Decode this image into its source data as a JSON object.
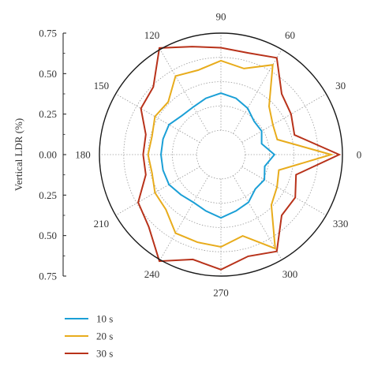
{
  "chart_data": {
    "type": "polar",
    "ylabel": "Vertical LDR (%)",
    "radial_axis": {
      "ticks": [
        "0.75",
        "0.50",
        "0.25",
        "0.00",
        "0.25",
        "0.50",
        "0.75"
      ],
      "rmax": 0.75
    },
    "angular_axis": {
      "ticks": [
        "0",
        "30",
        "60",
        "90",
        "120",
        "150",
        "180",
        "210",
        "240",
        "270",
        "300",
        "330"
      ],
      "unit": "degrees"
    },
    "grid": true,
    "legend_position": "bottom-left",
    "theta": [
      0,
      15,
      30,
      45,
      60,
      75,
      90,
      105,
      120,
      135,
      150,
      165,
      180,
      195,
      210,
      225,
      240,
      255,
      270,
      285,
      300,
      315,
      330,
      345
    ],
    "series": [
      {
        "name": "10 s",
        "color": "#1a9fd6",
        "r": [
          0.33,
          0.26,
          0.29,
          0.29,
          0.33,
          0.36,
          0.38,
          0.36,
          0.34,
          0.34,
          0.37,
          0.37,
          0.37,
          0.37,
          0.37,
          0.35,
          0.34,
          0.36,
          0.39,
          0.36,
          0.34,
          0.3,
          0.31,
          0.28
        ]
      },
      {
        "name": "20 s",
        "color": "#e8ac1c",
        "r": [
          0.68,
          0.36,
          0.37,
          0.42,
          0.64,
          0.55,
          0.58,
          0.54,
          0.56,
          0.46,
          0.47,
          0.44,
          0.45,
          0.44,
          0.47,
          0.48,
          0.56,
          0.56,
          0.57,
          0.52,
          0.67,
          0.44,
          0.4,
          0.37
        ]
      },
      {
        "name": "30 s",
        "color": "#b8321a",
        "r": [
          0.73,
          0.47,
          0.5,
          0.53,
          0.69,
          0.65,
          0.66,
          0.69,
          0.76,
          0.59,
          0.57,
          0.48,
          0.48,
          0.48,
          0.59,
          0.63,
          0.76,
          0.67,
          0.71,
          0.65,
          0.69,
          0.53,
          0.53,
          0.48
        ]
      }
    ]
  }
}
